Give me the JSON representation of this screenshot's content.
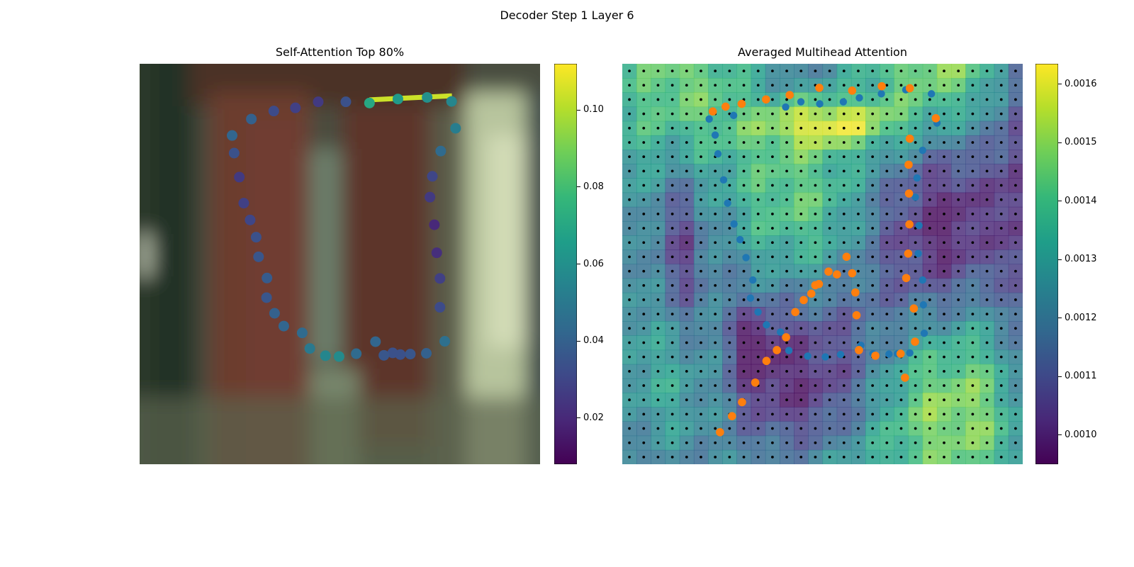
{
  "figure": {
    "suptitle": "Decoder Step 1 Layer 6"
  },
  "colors": {
    "viridis": [
      "#440154",
      "#482878",
      "#3e4989",
      "#31688e",
      "#26828e",
      "#1f9e89",
      "#35b779",
      "#6ece58",
      "#b5de2b",
      "#fde725"
    ],
    "pred": "#1f77b4",
    "gt": "#ff7f0e",
    "grid_dot": "#000000"
  },
  "chart_data": [
    {
      "type": "scatter",
      "title": "Self-Attention Top 80%",
      "background": "blurred photograph",
      "xlim": [
        0,
        100
      ],
      "ylim": [
        0,
        100
      ],
      "colorbar": {
        "range": [
          0.008,
          0.112
        ],
        "ticks": [
          0.02,
          0.04,
          0.06,
          0.08,
          0.1
        ],
        "tick_labels": [
          "0.02",
          "0.04",
          "0.06",
          "0.08",
          "0.10"
        ]
      },
      "points": [
        {
          "x": 57.4,
          "y": 9.8,
          "v": 0.07
        },
        {
          "x": 64.5,
          "y": 8.8,
          "v": 0.064
        },
        {
          "x": 71.8,
          "y": 8.4,
          "v": 0.06
        },
        {
          "x": 77.9,
          "y": 9.4,
          "v": 0.056
        },
        {
          "x": 78.9,
          "y": 16.1,
          "v": 0.052
        },
        {
          "x": 75.2,
          "y": 21.8,
          "v": 0.044
        },
        {
          "x": 73.1,
          "y": 28.1,
          "v": 0.03
        },
        {
          "x": 72.5,
          "y": 33.3,
          "v": 0.026
        },
        {
          "x": 73.6,
          "y": 40.2,
          "v": 0.02
        },
        {
          "x": 74.2,
          "y": 47.2,
          "v": 0.022
        },
        {
          "x": 75.0,
          "y": 53.6,
          "v": 0.028
        },
        {
          "x": 75.0,
          "y": 60.8,
          "v": 0.032
        },
        {
          "x": 76.2,
          "y": 69.3,
          "v": 0.046
        },
        {
          "x": 71.6,
          "y": 72.3,
          "v": 0.04
        },
        {
          "x": 67.6,
          "y": 72.5,
          "v": 0.036
        },
        {
          "x": 65.1,
          "y": 72.6,
          "v": 0.034
        },
        {
          "x": 63.2,
          "y": 72.2,
          "v": 0.034
        },
        {
          "x": 61.0,
          "y": 72.8,
          "v": 0.036
        },
        {
          "x": 58.9,
          "y": 69.4,
          "v": 0.042
        },
        {
          "x": 54.1,
          "y": 72.4,
          "v": 0.044
        },
        {
          "x": 49.8,
          "y": 73.1,
          "v": 0.058
        },
        {
          "x": 46.4,
          "y": 72.9,
          "v": 0.056
        },
        {
          "x": 42.5,
          "y": 71.1,
          "v": 0.05
        },
        {
          "x": 40.6,
          "y": 67.2,
          "v": 0.044
        },
        {
          "x": 36.0,
          "y": 65.5,
          "v": 0.042
        },
        {
          "x": 33.7,
          "y": 62.3,
          "v": 0.04
        },
        {
          "x": 31.7,
          "y": 58.4,
          "v": 0.036
        },
        {
          "x": 31.8,
          "y": 53.5,
          "v": 0.038
        },
        {
          "x": 29.7,
          "y": 48.2,
          "v": 0.036
        },
        {
          "x": 29.1,
          "y": 43.3,
          "v": 0.034
        },
        {
          "x": 27.6,
          "y": 39.0,
          "v": 0.03
        },
        {
          "x": 26.0,
          "y": 34.8,
          "v": 0.028
        },
        {
          "x": 24.9,
          "y": 28.3,
          "v": 0.026
        },
        {
          "x": 23.6,
          "y": 22.3,
          "v": 0.034
        },
        {
          "x": 23.1,
          "y": 17.9,
          "v": 0.042
        },
        {
          "x": 27.9,
          "y": 13.8,
          "v": 0.04
        },
        {
          "x": 33.5,
          "y": 11.8,
          "v": 0.032
        },
        {
          "x": 38.9,
          "y": 11.0,
          "v": 0.028
        },
        {
          "x": 44.6,
          "y": 9.5,
          "v": 0.026
        },
        {
          "x": 51.5,
          "y": 9.5,
          "v": 0.034
        }
      ],
      "highlight_segment": {
        "from": [
          57.4,
          9.0
        ],
        "to": [
          78.0,
          8.0
        ],
        "v": 0.104
      }
    },
    {
      "type": "heatmap",
      "title": "Averaged Multihead Attention",
      "grid": [
        28,
        28
      ],
      "xlim": [
        0,
        100
      ],
      "ylim": [
        0,
        100
      ],
      "colorbar": {
        "range": [
          0.00095,
          0.001635
        ],
        "ticks": [
          0.001,
          0.0011,
          0.0012,
          0.0013,
          0.0014,
          0.0015,
          0.0016
        ],
        "tick_labels": [
          "0.0010",
          "0.0011",
          "0.0012",
          "0.0013",
          "0.0014",
          "0.0015",
          "0.0016"
        ]
      },
      "series": [
        {
          "points": [
            [
              40.8,
              10.8
            ],
            [
              44.6,
              9.5
            ],
            [
              49.3,
              10.0
            ],
            [
              55.2,
              9.5
            ],
            [
              59.2,
              8.5
            ],
            [
              64.7,
              7.5
            ],
            [
              70.8,
              6.5
            ],
            [
              77.2,
              7.5
            ],
            [
              78.6,
              14.8
            ],
            [
              75.0,
              21.6
            ],
            [
              73.6,
              28.5
            ],
            [
              73.2,
              33.3
            ],
            [
              74.1,
              40.4
            ],
            [
              73.9,
              47.4
            ],
            [
              75.0,
              54.0
            ],
            [
              75.2,
              60.2
            ],
            [
              75.4,
              67.3
            ],
            [
              71.8,
              72.2
            ],
            [
              68.7,
              72.4
            ],
            [
              66.6,
              72.5
            ],
            [
              62.6,
              72.4
            ],
            [
              59.6,
              70.3
            ],
            [
              54.5,
              72.6
            ],
            [
              50.7,
              73.2
            ],
            [
              46.3,
              73.0
            ],
            [
              41.6,
              71.6
            ],
            [
              39.5,
              67.0
            ],
            [
              36.0,
              65.2
            ],
            [
              33.9,
              62.0
            ],
            [
              32.0,
              58.5
            ],
            [
              32.6,
              54.0
            ],
            [
              30.9,
              48.4
            ],
            [
              29.4,
              43.9
            ],
            [
              27.9,
              40.0
            ],
            [
              26.3,
              34.8
            ],
            [
              25.3,
              29.0
            ],
            [
              23.9,
              22.5
            ],
            [
              23.2,
              17.8
            ],
            [
              21.7,
              13.8
            ],
            [
              27.8,
              12.9
            ]
          ]
        },
        {
          "points": [
            [
              22.6,
              11.9
            ],
            [
              25.8,
              10.7
            ],
            [
              29.8,
              10.0
            ],
            [
              35.9,
              8.9
            ],
            [
              41.8,
              7.8
            ],
            [
              49.2,
              6.0
            ],
            [
              57.4,
              6.7
            ],
            [
              64.8,
              5.6
            ],
            [
              71.8,
              6.1
            ],
            [
              78.3,
              13.6
            ],
            [
              71.8,
              18.7
            ],
            [
              71.5,
              25.2
            ],
            [
              71.6,
              32.4
            ],
            [
              71.7,
              40.1
            ],
            [
              71.4,
              47.4
            ],
            [
              70.9,
              53.5
            ],
            [
              72.8,
              61.1
            ],
            [
              73.1,
              69.4
            ],
            [
              70.6,
              78.4
            ],
            [
              69.5,
              72.4
            ],
            [
              63.2,
              72.9
            ],
            [
              59.1,
              71.5
            ],
            [
              58.5,
              62.8
            ],
            [
              58.2,
              57.1
            ],
            [
              57.4,
              52.3
            ],
            [
              56.0,
              48.2
            ],
            [
              53.6,
              52.6
            ],
            [
              51.5,
              51.9
            ],
            [
              49.1,
              55.0
            ],
            [
              48.2,
              55.3
            ],
            [
              47.2,
              57.4
            ],
            [
              45.3,
              59.0
            ],
            [
              43.2,
              62.0
            ],
            [
              40.9,
              68.3
            ],
            [
              38.6,
              71.5
            ],
            [
              36.0,
              74.2
            ],
            [
              33.2,
              79.6
            ],
            [
              29.9,
              84.5
            ],
            [
              27.4,
              88.0
            ],
            [
              24.4,
              92.0
            ]
          ]
        }
      ]
    }
  ]
}
